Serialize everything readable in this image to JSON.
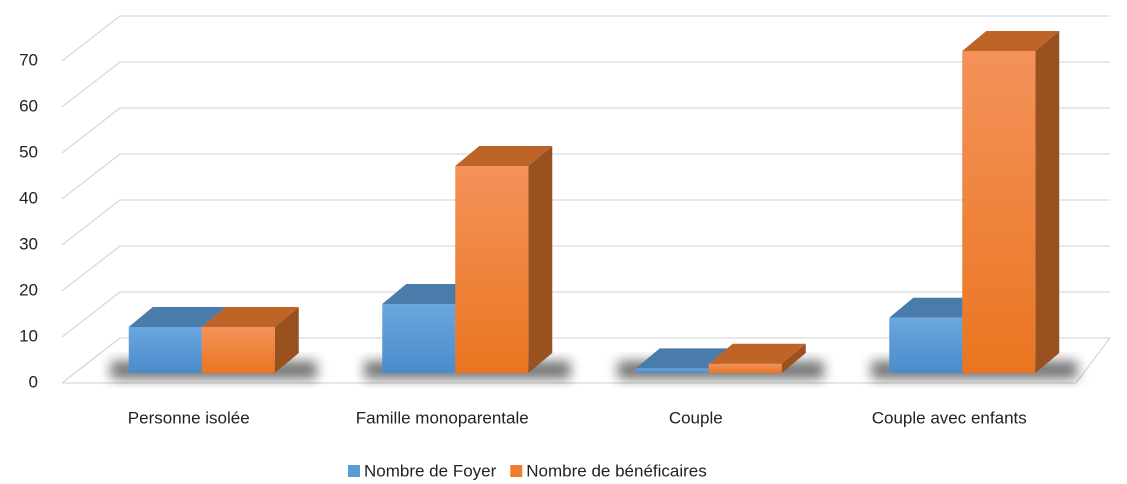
{
  "chart_data": {
    "type": "bar3d",
    "categories": [
      "Personne isolée",
      "Famille monoparentale",
      "Couple",
      "Couple avec enfants"
    ],
    "series": [
      {
        "name": "Nombre de Foyer",
        "color": "#5b9bd5",
        "values": [
          10,
          15,
          1,
          12
        ]
      },
      {
        "name": "Nombre de bénéficaires",
        "color": "#ed7d31",
        "values": [
          10,
          45,
          2,
          70
        ]
      }
    ],
    "ylim": [
      0,
      70
    ],
    "yticks": [
      0,
      10,
      20,
      30,
      40,
      50,
      60,
      70
    ],
    "grid": true,
    "legend": "bottom"
  }
}
